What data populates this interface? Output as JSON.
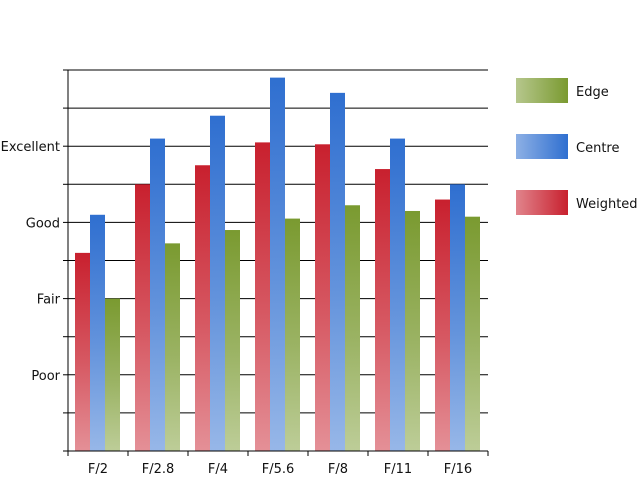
{
  "chart_data": {
    "type": "bar",
    "title": "",
    "xlabel": "",
    "ylabel": "",
    "categories": [
      "F/2",
      "F/2.8",
      "F/4",
      "F/5.6",
      "F/8",
      "F/11",
      "F/16"
    ],
    "y_tick_labels": [
      {
        "label": "Poor",
        "value": 2
      },
      {
        "label": "Fair",
        "value": 4
      },
      {
        "label": "Good",
        "value": 6
      },
      {
        "label": "Excellent",
        "value": 8
      }
    ],
    "ylim": [
      0,
      10
    ],
    "grid": true,
    "legend_position": "right",
    "series": [
      {
        "name": "Weighted",
        "color": "#c8202e",
        "values": [
          5.2,
          7.0,
          7.5,
          8.1,
          8.05,
          7.4,
          6.6
        ]
      },
      {
        "name": "Centre",
        "color": "#2f6fd0",
        "values": [
          6.2,
          8.2,
          8.8,
          9.8,
          9.4,
          8.2,
          7.0
        ]
      },
      {
        "name": "Edge",
        "color": "#7a9a30",
        "values": [
          4.0,
          5.45,
          5.8,
          6.1,
          6.45,
          6.3,
          6.15
        ]
      }
    ],
    "legend_order": [
      "Edge",
      "Centre",
      "Weighted"
    ]
  }
}
